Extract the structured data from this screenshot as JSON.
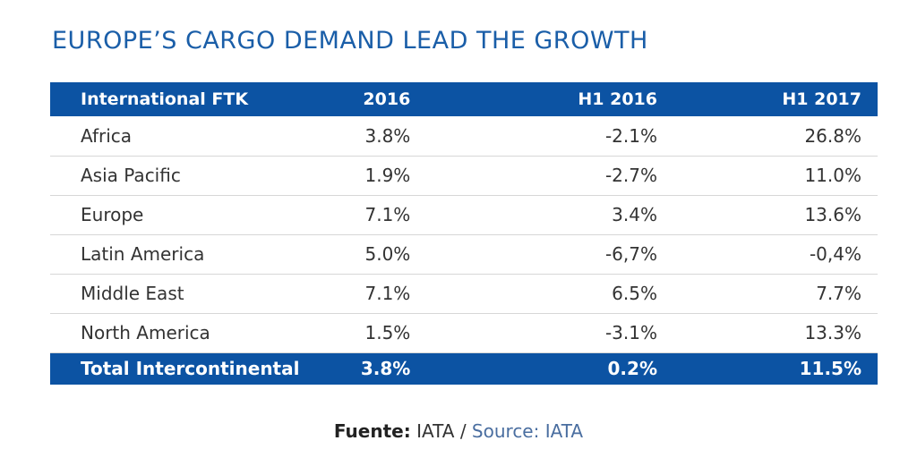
{
  "title": "EUROPE’S CARGO DEMAND LEAD THE GROWTH",
  "table": {
    "headers": [
      "International FTK",
      "2016",
      "H1 2016",
      "H1 2017"
    ],
    "rows": [
      [
        "Africa",
        "3.8%",
        "-2.1%",
        "26.8%"
      ],
      [
        "Asia Pacific",
        "1.9%",
        "-2.7%",
        "11.0%"
      ],
      [
        "Europe",
        "7.1%",
        "3.4%",
        "13.6%"
      ],
      [
        "Latin America",
        "5.0%",
        "-6,7%",
        "-0,4%"
      ],
      [
        "Middle East",
        "7.1%",
        "6.5%",
        "7.7%"
      ],
      [
        "North America",
        "1.5%",
        "-3.1%",
        "13.3%"
      ]
    ],
    "total": [
      "Total Intercontinental",
      "3.8%",
      "0.2%",
      "11.5%"
    ]
  },
  "source": {
    "label_es": "Fuente:",
    "value_es": " IATA / ",
    "label_en": "Source: IATA"
  },
  "colors": {
    "header_bg": "#0c53a3",
    "title": "#1a5ea8",
    "row_divider": "#d7d7d7"
  }
}
